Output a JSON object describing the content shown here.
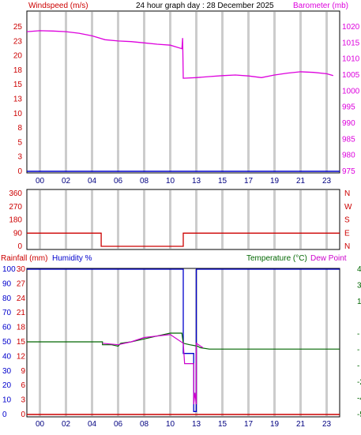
{
  "header": {
    "title": "24 hour graph day : 28 December 2025",
    "left_label": "Windspeed (m/s)",
    "right_label": "Barometer (mb)"
  },
  "colors": {
    "windspeed": "#cc0000",
    "barometer": "#dd00dd",
    "wind_dir": "#cc0000",
    "rainfall": "#cc0000",
    "humidity": "#0000cc",
    "temperature": "#006600",
    "dewpoint": "#cc00cc",
    "grid_band": "#cccccc"
  },
  "x_ticks": [
    "00",
    "02",
    "04",
    "06",
    "08",
    "10",
    "13",
    "15",
    "17",
    "19",
    "21",
    "23"
  ],
  "chart_data": [
    {
      "type": "line",
      "title": "24 hour graph day : 28 December 2025",
      "ylabel": "Windspeed (m/s)",
      "ylabel_right": "Barometer (mb)",
      "y_left_ticks": [
        "25",
        "23",
        "20",
        "18",
        "15",
        "13",
        "10",
        "8",
        "5",
        "3",
        "0"
      ],
      "y_right_ticks": [
        "1020",
        "1015",
        "1010",
        "1005",
        "1000",
        "995",
        "990",
        "985",
        "980",
        "975"
      ],
      "ylim_left": [
        0,
        25
      ],
      "ylim_right": [
        975,
        1020
      ],
      "series": [
        {
          "name": "Windspeed (m/s)",
          "axis": "left",
          "points": [
            [
              0,
              0
            ],
            [
              24,
              0
            ]
          ]
        },
        {
          "name": "Barometer (mb)",
          "axis": "right",
          "points": [
            [
              0,
              1018.5
            ],
            [
              1,
              1018.8
            ],
            [
              2,
              1018.7
            ],
            [
              3,
              1018.5
            ],
            [
              4,
              1018.0
            ],
            [
              5,
              1017.2
            ],
            [
              6,
              1016.0
            ],
            [
              7,
              1015.6
            ],
            [
              8,
              1015.4
            ],
            [
              9,
              1015.0
            ],
            [
              10,
              1014.6
            ],
            [
              11,
              1014.3
            ],
            [
              11.9,
              1013.2
            ],
            [
              11.95,
              1016.5
            ],
            [
              12.0,
              1004.0
            ],
            [
              13,
              1004.2
            ],
            [
              14,
              1004.5
            ],
            [
              15,
              1004.8
            ],
            [
              16,
              1005.0
            ],
            [
              17,
              1004.7
            ],
            [
              18,
              1004.2
            ],
            [
              19,
              1005.0
            ],
            [
              20,
              1005.6
            ],
            [
              21,
              1006.0
            ],
            [
              22,
              1005.8
            ],
            [
              23,
              1005.4
            ],
            [
              23.5,
              1004.8
            ]
          ]
        }
      ]
    },
    {
      "type": "line",
      "title": "",
      "y_left_ticks": [
        "360",
        "270",
        "180",
        "90",
        "0"
      ],
      "y_right_ticks": [
        "N",
        "W",
        "S",
        "E",
        "N"
      ],
      "ylim": [
        0,
        360
      ],
      "series": [
        {
          "name": "",
          "axis": "left",
          "points": [
            [
              0,
              90
            ],
            [
              5.7,
              90
            ],
            [
              5.7,
              0
            ],
            [
              12.0,
              0
            ],
            [
              12.0,
              90
            ],
            [
              24,
              90
            ]
          ]
        }
      ]
    },
    {
      "type": "line",
      "title": "",
      "labels": {
        "rainfall": "Rainfall (mm)",
        "humidity": "Humidity %",
        "temperature": "Temperature (°C)",
        "dewpoint": "Dew Point"
      },
      "y_left_rain_ticks": [
        "30",
        "27",
        "24",
        "21",
        "18",
        "15",
        "12",
        "9",
        "6",
        "3",
        "0"
      ],
      "y_left_hum_ticks": [
        "100",
        "90",
        "80",
        "70",
        "60",
        "50",
        "40",
        "30",
        "20",
        "10",
        "0"
      ],
      "y_right_ticks": [
        "4",
        "3",
        "1",
        "",
        "-",
        "-",
        "-",
        "-2",
        "-4",
        "-5"
      ],
      "ylim_humidity": [
        0,
        100
      ],
      "ylim_temperature": [
        -5.5,
        4.5
      ],
      "series": [
        {
          "name": "Rainfall (mm)",
          "axis": "left",
          "points": [
            [
              0,
              0
            ],
            [
              24,
              0
            ]
          ]
        },
        {
          "name": "Humidity %",
          "axis": "left",
          "points": [
            [
              0,
              100
            ],
            [
              12.0,
              100
            ],
            [
              12.0,
              42
            ],
            [
              12.8,
              42
            ],
            [
              12.8,
              2
            ],
            [
              13.0,
              2
            ],
            [
              13.0,
              100
            ],
            [
              24,
              100
            ]
          ]
        },
        {
          "name": "Temperature (°C)",
          "axis": "right",
          "points": [
            [
              0,
              -0.5
            ],
            [
              5.8,
              -0.5
            ],
            [
              5.8,
              -0.7
            ],
            [
              6.5,
              -0.7
            ],
            [
              7.0,
              -0.8
            ],
            [
              7.2,
              -0.6
            ],
            [
              8.0,
              -0.5
            ],
            [
              9.0,
              -0.3
            ],
            [
              10.0,
              -0.1
            ],
            [
              11.0,
              0.1
            ],
            [
              11.9,
              0.1
            ],
            [
              12.0,
              -0.6
            ],
            [
              12.5,
              -0.7
            ],
            [
              13.1,
              -0.8
            ],
            [
              13.3,
              -0.9
            ],
            [
              14,
              -1.0
            ],
            [
              24,
              -1.0
            ]
          ]
        },
        {
          "name": "Dew Point",
          "axis": "right",
          "points": [
            [
              5.8,
              -0.6
            ],
            [
              7.0,
              -0.7
            ],
            [
              8.0,
              -0.5
            ],
            [
              9.0,
              -0.2
            ],
            [
              11.0,
              0.0
            ],
            [
              12.0,
              -0.6
            ],
            [
              12.1,
              -2.0
            ],
            [
              12.8,
              -2.0
            ],
            [
              12.8,
              -4.8
            ],
            [
              12.9,
              -4.0
            ],
            [
              13.0,
              -4.8
            ],
            [
              13.0,
              -0.6
            ],
            [
              13.5,
              -0.9
            ]
          ]
        }
      ]
    }
  ]
}
